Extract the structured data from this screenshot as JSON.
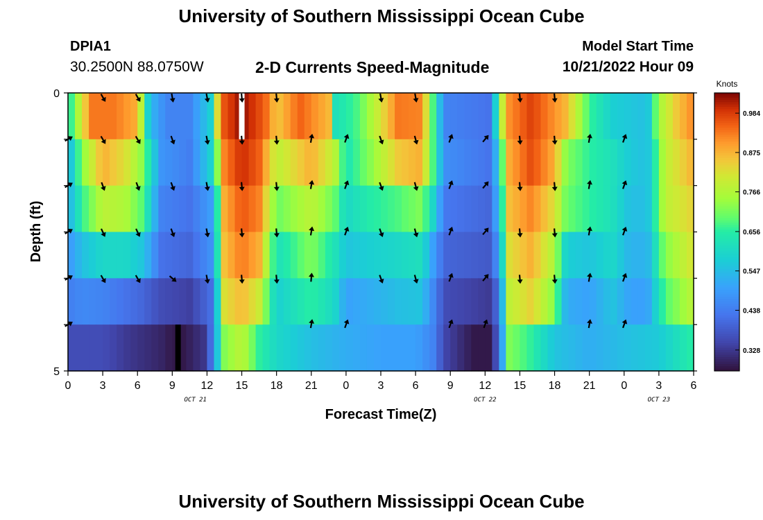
{
  "header": {
    "title": "University of Southern Mississippi Ocean Cube",
    "station_id": "DPIA1",
    "coordinates": "30.2500N  88.0750W",
    "chart_title": "2-D Currents Speed-Magnitude",
    "model_label": "Model Start Time",
    "model_time": "10/21/2022 Hour 09"
  },
  "footer": {
    "title": "University of Southern Mississippi Ocean Cube"
  },
  "chart_data": {
    "type": "heatmap",
    "title": "2-D Currents Speed-Magnitude",
    "xlabel": "Forecast Time(Z)",
    "ylabel": "Depth (ft)",
    "x_ticks": [
      "0",
      "3",
      "6",
      "9",
      "12",
      "15",
      "18",
      "21",
      "0",
      "3",
      "6",
      "9",
      "12",
      "15",
      "18",
      "21",
      "0",
      "3",
      "6"
    ],
    "x_range_hours": [
      0,
      54
    ],
    "y_ticks": [
      "0",
      "5"
    ],
    "y_range_ft": [
      0,
      5
    ],
    "date_labels": [
      {
        "text": "OCT 21",
        "hour": 11
      },
      {
        "text": "OCT 22",
        "hour": 36
      },
      {
        "text": "OCT 23",
        "hour": 51
      }
    ],
    "colorbar": {
      "title": "Knots",
      "min": 0.27,
      "max": 1.04,
      "ticks": [
        "0.984",
        "0.875",
        "0.766",
        "0.656",
        "0.547",
        "0.438",
        "0.328"
      ],
      "tick_values": [
        0.984,
        0.875,
        0.766,
        0.656,
        0.547,
        0.438,
        0.328
      ]
    },
    "depth_layers": 6,
    "speed_profiles": [
      {
        "depth_layer": 0,
        "points": [
          [
            0,
            0.62
          ],
          [
            0.6,
            0.72
          ],
          [
            2,
            0.93
          ],
          [
            4,
            0.93
          ],
          [
            6,
            0.88
          ],
          [
            7,
            0.55
          ],
          [
            8.5,
            0.45
          ],
          [
            10.5,
            0.45
          ],
          [
            12.3,
            0.58
          ],
          [
            13.2,
            0.95
          ],
          [
            15,
            1.03
          ],
          [
            17,
            0.95
          ],
          [
            18,
            0.85
          ],
          [
            20,
            0.95
          ],
          [
            22.5,
            0.87
          ],
          [
            23,
            0.62
          ],
          [
            25,
            0.68
          ],
          [
            26.5,
            0.78
          ],
          [
            28.5,
            0.93
          ],
          [
            30.5,
            0.92
          ],
          [
            31.5,
            0.68
          ],
          [
            32.5,
            0.45
          ],
          [
            36.5,
            0.42
          ],
          [
            37,
            0.62
          ],
          [
            37.8,
            0.9
          ],
          [
            40,
            0.98
          ],
          [
            43,
            0.87
          ],
          [
            45,
            0.67
          ],
          [
            47,
            0.58
          ],
          [
            50,
            0.55
          ],
          [
            51,
            0.75
          ],
          [
            52.5,
            0.85
          ],
          [
            54,
            0.92
          ]
        ]
      },
      {
        "depth_layer": 1,
        "points": [
          [
            0,
            0.52
          ],
          [
            1.2,
            0.72
          ],
          [
            3,
            0.88
          ],
          [
            5,
            0.82
          ],
          [
            6.5,
            0.72
          ],
          [
            8,
            0.48
          ],
          [
            10.5,
            0.44
          ],
          [
            12.5,
            0.6
          ],
          [
            13.5,
            0.92
          ],
          [
            15,
            1.0
          ],
          [
            16.5,
            0.95
          ],
          [
            18,
            0.78
          ],
          [
            21,
            0.88
          ],
          [
            23,
            0.78
          ],
          [
            24,
            0.63
          ],
          [
            26,
            0.72
          ],
          [
            28.5,
            0.85
          ],
          [
            30.5,
            0.88
          ],
          [
            31.5,
            0.68
          ],
          [
            32.5,
            0.47
          ],
          [
            36.5,
            0.42
          ],
          [
            37.3,
            0.62
          ],
          [
            38,
            0.88
          ],
          [
            40,
            0.97
          ],
          [
            42,
            0.88
          ],
          [
            43,
            0.72
          ],
          [
            45,
            0.66
          ],
          [
            47,
            0.62
          ],
          [
            48.5,
            0.57
          ],
          [
            50,
            0.55
          ],
          [
            51.5,
            0.78
          ],
          [
            54,
            0.88
          ]
        ]
      },
      {
        "depth_layer": 2,
        "points": [
          [
            0,
            0.52
          ],
          [
            1.2,
            0.66
          ],
          [
            3,
            0.78
          ],
          [
            5,
            0.76
          ],
          [
            6.5,
            0.68
          ],
          [
            8,
            0.45
          ],
          [
            10.5,
            0.42
          ],
          [
            12.5,
            0.5
          ],
          [
            13.5,
            0.88
          ],
          [
            15,
            0.96
          ],
          [
            16.5,
            0.92
          ],
          [
            18,
            0.7
          ],
          [
            21,
            0.78
          ],
          [
            23,
            0.7
          ],
          [
            24,
            0.6
          ],
          [
            26,
            0.65
          ],
          [
            28.5,
            0.68
          ],
          [
            30.5,
            0.72
          ],
          [
            31.5,
            0.6
          ],
          [
            32.5,
            0.43
          ],
          [
            36.5,
            0.4
          ],
          [
            37.3,
            0.58
          ],
          [
            38,
            0.86
          ],
          [
            40,
            0.92
          ],
          [
            42,
            0.82
          ],
          [
            43,
            0.7
          ],
          [
            45,
            0.66
          ],
          [
            47,
            0.62
          ],
          [
            48.5,
            0.55
          ],
          [
            50,
            0.55
          ],
          [
            51.5,
            0.78
          ],
          [
            54,
            0.84
          ]
        ]
      },
      {
        "depth_layer": 3,
        "points": [
          [
            0,
            0.48
          ],
          [
            1.2,
            0.55
          ],
          [
            3,
            0.6
          ],
          [
            5,
            0.6
          ],
          [
            6.5,
            0.56
          ],
          [
            8,
            0.42
          ],
          [
            10.5,
            0.4
          ],
          [
            12.5,
            0.48
          ],
          [
            13.5,
            0.86
          ],
          [
            15,
            0.93
          ],
          [
            16.5,
            0.88
          ],
          [
            18,
            0.62
          ],
          [
            21,
            0.72
          ],
          [
            23,
            0.63
          ],
          [
            24,
            0.56
          ],
          [
            26,
            0.58
          ],
          [
            28.5,
            0.6
          ],
          [
            30.5,
            0.62
          ],
          [
            31.5,
            0.5
          ],
          [
            32.5,
            0.4
          ],
          [
            36.5,
            0.38
          ],
          [
            37.3,
            0.52
          ],
          [
            38,
            0.82
          ],
          [
            40,
            0.88
          ],
          [
            42,
            0.76
          ],
          [
            43,
            0.58
          ],
          [
            45,
            0.56
          ],
          [
            47,
            0.6
          ],
          [
            48.5,
            0.53
          ],
          [
            50,
            0.53
          ],
          [
            51.5,
            0.72
          ],
          [
            54,
            0.82
          ]
        ]
      },
      {
        "depth_layer": 4,
        "points": [
          [
            0,
            0.44
          ],
          [
            1.2,
            0.46
          ],
          [
            3,
            0.45
          ],
          [
            5,
            0.42
          ],
          [
            6.5,
            0.4
          ],
          [
            8,
            0.36
          ],
          [
            10.5,
            0.34
          ],
          [
            12.5,
            0.42
          ],
          [
            13.5,
            0.82
          ],
          [
            15,
            0.87
          ],
          [
            16.5,
            0.8
          ],
          [
            18,
            0.58
          ],
          [
            21,
            0.66
          ],
          [
            23,
            0.6
          ],
          [
            24,
            0.5
          ],
          [
            26,
            0.52
          ],
          [
            28.5,
            0.55
          ],
          [
            30.5,
            0.56
          ],
          [
            31.5,
            0.46
          ],
          [
            32.5,
            0.36
          ],
          [
            36.5,
            0.33
          ],
          [
            37.3,
            0.45
          ],
          [
            38,
            0.78
          ],
          [
            40,
            0.84
          ],
          [
            42,
            0.72
          ],
          [
            43,
            0.52
          ],
          [
            45,
            0.5
          ],
          [
            47,
            0.56
          ],
          [
            48.5,
            0.5
          ],
          [
            50,
            0.5
          ],
          [
            51.5,
            0.68
          ],
          [
            54,
            0.78
          ]
        ]
      },
      {
        "depth_layer": 5,
        "points": [
          [
            0,
            0.36
          ],
          [
            3,
            0.36
          ],
          [
            5,
            0.33
          ],
          [
            8,
            0.3
          ],
          [
            9,
            0.28
          ],
          [
            10,
            0.28
          ],
          [
            12,
            0.33
          ],
          [
            13.5,
            0.72
          ],
          [
            15,
            0.78
          ],
          [
            16.5,
            0.66
          ],
          [
            18,
            0.6
          ],
          [
            21,
            0.55
          ],
          [
            24,
            0.52
          ],
          [
            27,
            0.5
          ],
          [
            30,
            0.5
          ],
          [
            31.5,
            0.45
          ],
          [
            32.5,
            0.35
          ],
          [
            35,
            0.28
          ],
          [
            36.5,
            0.28
          ],
          [
            37.3,
            0.43
          ],
          [
            38,
            0.72
          ],
          [
            40,
            0.66
          ],
          [
            42,
            0.56
          ],
          [
            45,
            0.52
          ],
          [
            48,
            0.55
          ],
          [
            51,
            0.57
          ],
          [
            53,
            0.63
          ],
          [
            54,
            0.66
          ]
        ]
      }
    ],
    "missing_cells": [
      {
        "depth_layer": 0,
        "hour": 15,
        "color": "#ffffff"
      },
      {
        "depth_layer": 5,
        "hour": 9.5,
        "color": "#000000"
      }
    ],
    "arrow_hours": [
      0,
      3,
      6,
      9,
      12,
      15,
      18,
      21,
      24,
      27,
      30,
      33,
      36,
      39,
      42,
      45,
      48,
      51,
      54
    ],
    "arrow_directions_deg": [
      [
        null,
        150,
        150,
        170,
        170,
        175,
        175,
        null,
        null,
        170,
        170,
        null,
        null,
        175,
        175,
        null,
        null,
        null,
        null
      ],
      [
        60,
        150,
        150,
        160,
        170,
        175,
        175,
        10,
        20,
        160,
        165,
        20,
        40,
        175,
        175,
        10,
        20,
        null,
        null
      ],
      [
        60,
        160,
        160,
        160,
        170,
        175,
        175,
        10,
        20,
        160,
        165,
        20,
        40,
        175,
        175,
        10,
        20,
        null,
        null
      ],
      [
        60,
        155,
        155,
        160,
        170,
        175,
        175,
        10,
        20,
        160,
        165,
        20,
        40,
        175,
        175,
        10,
        20,
        null,
        null
      ],
      [
        60,
        150,
        150,
        130,
        170,
        175,
        175,
        5,
        null,
        160,
        165,
        20,
        40,
        175,
        175,
        10,
        20,
        null,
        null
      ],
      [
        60,
        null,
        null,
        null,
        null,
        null,
        null,
        10,
        20,
        null,
        null,
        20,
        20,
        null,
        null,
        10,
        20,
        null,
        null
      ]
    ]
  }
}
